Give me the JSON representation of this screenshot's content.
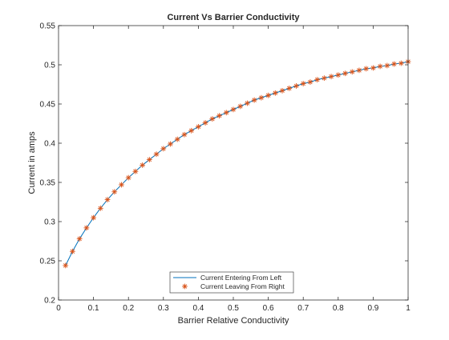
{
  "chart_data": {
    "type": "line",
    "title": "Current Vs Barrier Conductivity",
    "xlabel": "Barrier Relative Conductivity",
    "ylabel": "Current in amps",
    "xlim": [
      0,
      1
    ],
    "ylim": [
      0.2,
      0.55
    ],
    "x_ticks": [
      0,
      0.1,
      0.2,
      0.3,
      0.4,
      0.5,
      0.6,
      0.7,
      0.8,
      0.9,
      1
    ],
    "x_tick_labels": [
      "0",
      "0.1",
      "0.2",
      "0.3",
      "0.4",
      "0.5",
      "0.6",
      "0.7",
      "0.8",
      "0.9",
      "1"
    ],
    "y_ticks": [
      0.2,
      0.25,
      0.3,
      0.35,
      0.4,
      0.45,
      0.5,
      0.55
    ],
    "y_tick_labels": [
      "0.2",
      "0.25",
      "0.3",
      "0.35",
      "0.4",
      "0.45",
      "0.5",
      "0.55"
    ],
    "grid": false,
    "legend_location": "bottom-center",
    "x": [
      0.02,
      0.04,
      0.06,
      0.08,
      0.1,
      0.12,
      0.14,
      0.16,
      0.18,
      0.2,
      0.22,
      0.24,
      0.26,
      0.28,
      0.3,
      0.32,
      0.34,
      0.36,
      0.38,
      0.4,
      0.42,
      0.44,
      0.46,
      0.48,
      0.5,
      0.52,
      0.54,
      0.56,
      0.58,
      0.6,
      0.62,
      0.64,
      0.66,
      0.68,
      0.7,
      0.72,
      0.74,
      0.76,
      0.78,
      0.8,
      0.82,
      0.84,
      0.86,
      0.88,
      0.9,
      0.92,
      0.94,
      0.96,
      0.98,
      1.0
    ],
    "series": [
      {
        "name": "Current Entering From Left",
        "style": "line",
        "color": "#0072BD",
        "values": [
          0.244,
          0.262,
          0.278,
          0.292,
          0.305,
          0.317,
          0.328,
          0.338,
          0.347,
          0.356,
          0.364,
          0.372,
          0.379,
          0.386,
          0.393,
          0.399,
          0.405,
          0.411,
          0.416,
          0.421,
          0.426,
          0.431,
          0.435,
          0.439,
          0.443,
          0.447,
          0.451,
          0.455,
          0.458,
          0.461,
          0.464,
          0.467,
          0.47,
          0.473,
          0.476,
          0.478,
          0.481,
          0.483,
          0.485,
          0.487,
          0.489,
          0.491,
          0.493,
          0.495,
          0.496,
          0.498,
          0.499,
          0.501,
          0.502,
          0.504
        ]
      },
      {
        "name": "Current Leaving From Right",
        "style": "marker",
        "marker": "asterisk",
        "color": "#D95319",
        "values": [
          0.244,
          0.262,
          0.278,
          0.292,
          0.305,
          0.317,
          0.328,
          0.338,
          0.347,
          0.356,
          0.364,
          0.372,
          0.379,
          0.386,
          0.393,
          0.399,
          0.405,
          0.411,
          0.416,
          0.421,
          0.426,
          0.431,
          0.435,
          0.439,
          0.443,
          0.447,
          0.451,
          0.455,
          0.458,
          0.461,
          0.464,
          0.467,
          0.47,
          0.473,
          0.476,
          0.478,
          0.481,
          0.483,
          0.485,
          0.487,
          0.489,
          0.491,
          0.493,
          0.495,
          0.496,
          0.498,
          0.499,
          0.501,
          0.502,
          0.504
        ]
      }
    ]
  }
}
